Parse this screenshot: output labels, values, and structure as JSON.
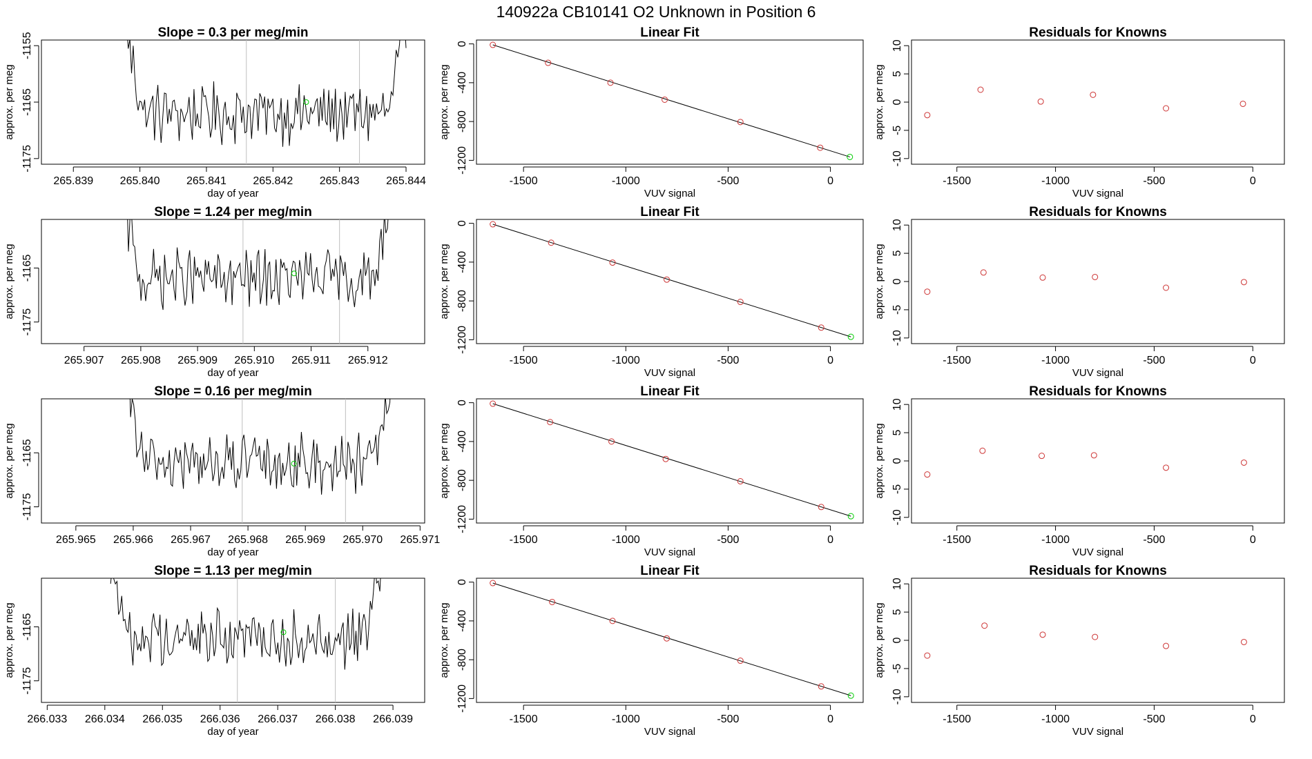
{
  "figure": {
    "title": "140922a      CB10141    O2 Unknown in Position  6"
  },
  "colors": {
    "trace": "#000000",
    "grid_line": "#bebebe",
    "known_point": "#cd3333",
    "unknown_point": "#00cc00",
    "fit_line": "#000000"
  },
  "chart_data": [
    {
      "id": "ts1",
      "type": "line",
      "title": "Slope =  0.3  per meg/min",
      "xlabel": "day of year",
      "ylabel": "approx. per meg",
      "xlim": [
        265.83852,
        265.84428
      ],
      "ylim": [
        -1176,
        -1154
      ],
      "xticks": [
        "265.839",
        "265.840",
        "265.841",
        "265.842",
        "265.843",
        "265.844"
      ],
      "xtick_values": [
        265.839,
        265.84,
        265.841,
        265.842,
        265.843,
        265.844
      ],
      "yticks": [
        "-1155",
        "-1165",
        "-1175"
      ],
      "ytick_values": [
        -1155,
        -1165,
        -1175
      ],
      "trace_start": 265.8398,
      "trace_end": 265.844,
      "vlines": [
        265.8416,
        265.8433
      ],
      "marker": [
        265.8425,
        -1165
      ]
    },
    {
      "id": "fit1",
      "type": "scatter",
      "title": "Linear Fit",
      "xlabel": "VUV signal",
      "ylabel": "approx. per meg",
      "xlim": [
        -1730,
        160
      ],
      "ylim": [
        -1240,
        40
      ],
      "xticks": [
        "-1500",
        "-1000",
        "-500",
        "0"
      ],
      "xtick_values": [
        -1500,
        -1000,
        -500,
        0
      ],
      "yticks": [
        "0",
        "-400",
        "-800",
        "-1200"
      ],
      "ytick_values": [
        0,
        -400,
        -800,
        -1200
      ],
      "points_x": [
        -1650,
        -1380,
        -1075,
        -810,
        -440,
        -50
      ],
      "points_y": [
        -10,
        -195,
        -400,
        -575,
        -805,
        -1070
      ],
      "unknown": [
        95,
        -1165
      ],
      "fit_line": [
        [
          -1650,
          -10
        ],
        [
          95,
          -1165
        ]
      ]
    },
    {
      "id": "res1",
      "type": "scatter",
      "title": "Residuals for Knowns",
      "xlabel": "VUV signal",
      "ylabel": "approx. per meg",
      "xlim": [
        -1730,
        160
      ],
      "ylim": [
        -11,
        11
      ],
      "xticks": [
        "-1500",
        "-1000",
        "-500",
        "0"
      ],
      "xtick_values": [
        -1500,
        -1000,
        -500,
        0
      ],
      "yticks": [
        "10",
        "5",
        "0",
        "-5",
        "-10"
      ],
      "ytick_values": [
        10,
        5,
        0,
        -5,
        -10
      ],
      "points_x": [
        -1650,
        -1380,
        -1075,
        -810,
        -440,
        -50
      ],
      "points_y": [
        -2.3,
        2.2,
        0.1,
        1.3,
        -1.1,
        -0.3
      ]
    },
    {
      "id": "ts2",
      "type": "line",
      "title": "Slope =  1.24  per meg/min",
      "xlabel": "day of year",
      "ylabel": "approx. per meg",
      "xlim": [
        265.90625,
        265.913
      ],
      "ylim": [
        -1179,
        -1156
      ],
      "xticks": [
        "265.907",
        "265.908",
        "265.909",
        "265.910",
        "265.911",
        "265.912"
      ],
      "xtick_values": [
        265.907,
        265.908,
        265.909,
        265.91,
        265.911,
        265.912
      ],
      "yticks": [
        "-1165",
        "-1175"
      ],
      "ytick_values": [
        -1165,
        -1175
      ],
      "trace_start": 265.9077,
      "trace_end": 265.9124,
      "vlines": [
        265.9098,
        265.9115
      ],
      "marker": [
        265.9107,
        -1166
      ]
    },
    {
      "id": "fit2",
      "type": "scatter",
      "title": "Linear Fit",
      "xlabel": "VUV signal",
      "ylabel": "approx. per meg",
      "xlim": [
        -1730,
        160
      ],
      "ylim": [
        -1240,
        40
      ],
      "xticks": [
        "-1500",
        "-1000",
        "-500",
        "0"
      ],
      "xtick_values": [
        -1500,
        -1000,
        -500,
        0
      ],
      "yticks": [
        "0",
        "-400",
        "-800",
        "-1200"
      ],
      "ytick_values": [
        0,
        -400,
        -800,
        -1200
      ],
      "points_x": [
        -1650,
        -1365,
        -1065,
        -800,
        -440,
        -45
      ],
      "points_y": [
        -10,
        -200,
        -405,
        -580,
        -810,
        -1075
      ],
      "unknown": [
        100,
        -1170
      ],
      "fit_line": [
        [
          -1650,
          -10
        ],
        [
          100,
          -1170
        ]
      ]
    },
    {
      "id": "res2",
      "type": "scatter",
      "title": "Residuals for Knowns",
      "xlabel": "VUV signal",
      "ylabel": "approx. per meg",
      "xlim": [
        -1730,
        160
      ],
      "ylim": [
        -11,
        11
      ],
      "xticks": [
        "-1500",
        "-1000",
        "-500",
        "0"
      ],
      "xtick_values": [
        -1500,
        -1000,
        -500,
        0
      ],
      "yticks": [
        "10",
        "5",
        "0",
        "-5",
        "-10"
      ],
      "ytick_values": [
        10,
        5,
        0,
        -5,
        -10
      ],
      "points_x": [
        -1650,
        -1365,
        -1065,
        -800,
        -440,
        -45
      ],
      "points_y": [
        -1.8,
        1.6,
        0.7,
        0.8,
        -1.1,
        -0.1
      ]
    },
    {
      "id": "ts3",
      "type": "line",
      "title": "Slope =  0.16  per meg/min",
      "xlabel": "day of year",
      "ylabel": "approx. per meg",
      "xlim": [
        265.9644,
        265.97108
      ],
      "ylim": [
        -1178,
        -1155
      ],
      "xticks": [
        "265.965",
        "265.966",
        "265.967",
        "265.968",
        "265.969",
        "265.970",
        "265.971"
      ],
      "xtick_values": [
        265.965,
        265.966,
        265.967,
        265.968,
        265.969,
        265.97,
        265.971
      ],
      "yticks": [
        "-1165",
        "-1175"
      ],
      "ytick_values": [
        -1165,
        -1175
      ],
      "trace_start": 265.9659,
      "trace_end": 265.9705,
      "vlines": [
        265.9679,
        265.9697
      ],
      "marker": [
        265.9688,
        -1167
      ]
    },
    {
      "id": "fit3",
      "type": "scatter",
      "title": "Linear Fit",
      "xlabel": "VUV signal",
      "ylabel": "approx. per meg",
      "xlim": [
        -1730,
        160
      ],
      "ylim": [
        -1240,
        40
      ],
      "xticks": [
        "-1500",
        "-1000",
        "-500",
        "0"
      ],
      "xtick_values": [
        -1500,
        -1000,
        -500,
        0
      ],
      "yticks": [
        "0",
        "-400",
        "-800",
        "-1200"
      ],
      "ytick_values": [
        0,
        -400,
        -800,
        -1200
      ],
      "points_x": [
        -1650,
        -1370,
        -1070,
        -805,
        -440,
        -45
      ],
      "points_y": [
        -10,
        -200,
        -400,
        -580,
        -810,
        -1075
      ],
      "unknown": [
        100,
        -1170
      ],
      "fit_line": [
        [
          -1650,
          -10
        ],
        [
          100,
          -1170
        ]
      ]
    },
    {
      "id": "res3",
      "type": "scatter",
      "title": "Residuals for Knowns",
      "xlabel": "VUV signal",
      "ylabel": "approx. per meg",
      "xlim": [
        -1730,
        160
      ],
      "ylim": [
        -11,
        11
      ],
      "xticks": [
        "-1500",
        "-1000",
        "-500",
        "0"
      ],
      "xtick_values": [
        -1500,
        -1000,
        -500,
        0
      ],
      "yticks": [
        "10",
        "5",
        "0",
        "-5",
        "-10"
      ],
      "ytick_values": [
        10,
        5,
        0,
        -5,
        -10
      ],
      "points_x": [
        -1650,
        -1370,
        -1070,
        -805,
        -440,
        -45
      ],
      "points_y": [
        -2.4,
        1.8,
        0.9,
        1.0,
        -1.2,
        -0.3
      ]
    },
    {
      "id": "ts4",
      "type": "line",
      "title": "Slope =  1.13  per meg/min",
      "xlabel": "day of year",
      "ylabel": "approx. per meg",
      "xlim": [
        266.0329,
        266.03955
      ],
      "ylim": [
        -1179,
        -1156
      ],
      "xticks": [
        "266.033",
        "266.034",
        "266.035",
        "266.036",
        "266.037",
        "266.038",
        "266.039"
      ],
      "xtick_values": [
        266.033,
        266.034,
        266.035,
        266.036,
        266.037,
        266.038,
        266.039
      ],
      "yticks": [
        "-1165",
        "-1175"
      ],
      "ytick_values": [
        -1165,
        -1175
      ],
      "trace_start": 266.0341,
      "trace_end": 266.0388,
      "vlines": [
        266.0363,
        266.038
      ],
      "marker": [
        266.0371,
        -1166
      ]
    },
    {
      "id": "fit4",
      "type": "scatter",
      "title": "Linear Fit",
      "xlabel": "VUV signal",
      "ylabel": "approx. per meg",
      "xlim": [
        -1730,
        160
      ],
      "ylim": [
        -1240,
        40
      ],
      "xticks": [
        "-1500",
        "-1000",
        "-500",
        "0"
      ],
      "xtick_values": [
        -1500,
        -1000,
        -500,
        0
      ],
      "yticks": [
        "0",
        "-400",
        "-800",
        "-1200"
      ],
      "ytick_values": [
        0,
        -400,
        -800,
        -1200
      ],
      "points_x": [
        -1650,
        -1360,
        -1065,
        -800,
        -440,
        -45
      ],
      "points_y": [
        -10,
        -205,
        -400,
        -580,
        -810,
        -1075
      ],
      "unknown": [
        100,
        -1170
      ],
      "fit_line": [
        [
          -1650,
          -10
        ],
        [
          100,
          -1170
        ]
      ]
    },
    {
      "id": "res4",
      "type": "scatter",
      "title": "Residuals for Knowns",
      "xlabel": "VUV signal",
      "ylabel": "approx. per meg",
      "xlim": [
        -1730,
        160
      ],
      "ylim": [
        -11,
        11
      ],
      "xticks": [
        "-1500",
        "-1000",
        "-500",
        "0"
      ],
      "xtick_values": [
        -1500,
        -1000,
        -500,
        0
      ],
      "yticks": [
        "10",
        "5",
        "0",
        "-5",
        "-10"
      ],
      "ytick_values": [
        10,
        5,
        0,
        -5,
        -10
      ],
      "points_x": [
        -1650,
        -1360,
        -1065,
        -800,
        -440,
        -45
      ],
      "points_y": [
        -2.7,
        2.6,
        1.0,
        0.6,
        -1.0,
        -0.3
      ]
    }
  ]
}
